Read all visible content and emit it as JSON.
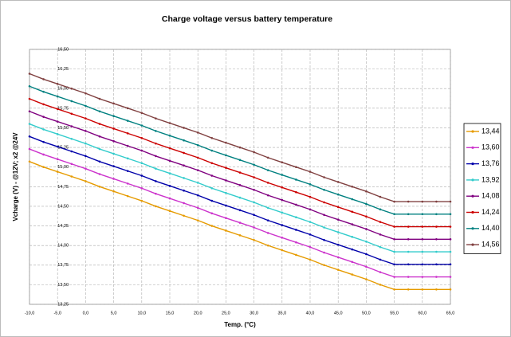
{
  "chart_data": {
    "type": "line",
    "title": "Charge voltage versus battery temperature",
    "x_label": "Temp. (°C)",
    "y_label": "Vcharge (V) - @12V; x2 @24V",
    "x": [
      -10,
      -7.5,
      -5,
      -2.5,
      0,
      2.5,
      5,
      7.5,
      10,
      12.5,
      15,
      17.5,
      20,
      22.5,
      25,
      27.5,
      30,
      32.5,
      35,
      37.5,
      40,
      42.5,
      45,
      47.5,
      50,
      52.5,
      55,
      57.5,
      60,
      62.5,
      65
    ],
    "series": [
      {
        "name": "13,44",
        "color": "#e69b00",
        "values": [
          15.07,
          15.0,
          14.94,
          14.88,
          14.82,
          14.75,
          14.69,
          14.63,
          14.57,
          14.5,
          14.44,
          14.38,
          14.32,
          14.25,
          14.19,
          14.13,
          14.07,
          14.0,
          13.94,
          13.88,
          13.82,
          13.75,
          13.69,
          13.63,
          13.57,
          13.5,
          13.44,
          13.44,
          13.44,
          13.44,
          13.44
        ]
      },
      {
        "name": "13,60",
        "color": "#cc33cc",
        "values": [
          15.23,
          15.16,
          15.1,
          15.04,
          14.98,
          14.91,
          14.85,
          14.79,
          14.73,
          14.66,
          14.6,
          14.54,
          14.48,
          14.41,
          14.35,
          14.29,
          14.23,
          14.16,
          14.1,
          14.04,
          13.98,
          13.91,
          13.85,
          13.79,
          13.73,
          13.66,
          13.6,
          13.6,
          13.6,
          13.6,
          13.6
        ]
      },
      {
        "name": "13,76",
        "color": "#0000aa",
        "values": [
          15.39,
          15.32,
          15.26,
          15.2,
          15.14,
          15.07,
          15.01,
          14.95,
          14.89,
          14.82,
          14.76,
          14.7,
          14.64,
          14.57,
          14.51,
          14.45,
          14.39,
          14.32,
          14.26,
          14.2,
          14.14,
          14.07,
          14.01,
          13.95,
          13.89,
          13.82,
          13.76,
          13.76,
          13.76,
          13.76,
          13.76
        ]
      },
      {
        "name": "13,92",
        "color": "#33cccc",
        "values": [
          15.55,
          15.48,
          15.42,
          15.36,
          15.3,
          15.23,
          15.17,
          15.11,
          15.05,
          14.98,
          14.92,
          14.86,
          14.8,
          14.73,
          14.67,
          14.61,
          14.55,
          14.48,
          14.42,
          14.36,
          14.3,
          14.23,
          14.17,
          14.11,
          14.05,
          13.98,
          13.92,
          13.92,
          13.92,
          13.92,
          13.92
        ]
      },
      {
        "name": "14,08",
        "color": "#800080",
        "values": [
          15.71,
          15.64,
          15.58,
          15.52,
          15.46,
          15.39,
          15.33,
          15.27,
          15.21,
          15.14,
          15.08,
          15.02,
          14.96,
          14.89,
          14.83,
          14.77,
          14.71,
          14.64,
          14.58,
          14.52,
          14.46,
          14.39,
          14.33,
          14.27,
          14.21,
          14.14,
          14.08,
          14.08,
          14.08,
          14.08,
          14.08
        ]
      },
      {
        "name": "14,24",
        "color": "#cc0000",
        "values": [
          15.87,
          15.8,
          15.74,
          15.68,
          15.62,
          15.55,
          15.49,
          15.43,
          15.37,
          15.3,
          15.24,
          15.18,
          15.12,
          15.05,
          14.99,
          14.93,
          14.87,
          14.8,
          14.74,
          14.68,
          14.62,
          14.55,
          14.49,
          14.43,
          14.37,
          14.3,
          14.24,
          14.24,
          14.24,
          14.24,
          14.24
        ]
      },
      {
        "name": "14,40",
        "color": "#008080",
        "values": [
          16.03,
          15.96,
          15.9,
          15.84,
          15.78,
          15.71,
          15.65,
          15.59,
          15.53,
          15.46,
          15.4,
          15.34,
          15.28,
          15.21,
          15.15,
          15.09,
          15.03,
          14.96,
          14.9,
          14.84,
          14.78,
          14.71,
          14.65,
          14.59,
          14.53,
          14.46,
          14.4,
          14.4,
          14.4,
          14.4,
          14.4
        ]
      },
      {
        "name": "14,56",
        "color": "#804040",
        "values": [
          16.19,
          16.12,
          16.06,
          16.0,
          15.94,
          15.87,
          15.81,
          15.75,
          15.69,
          15.62,
          15.56,
          15.5,
          15.44,
          15.37,
          15.31,
          15.25,
          15.19,
          15.12,
          15.06,
          15.0,
          14.94,
          14.87,
          14.81,
          14.75,
          14.69,
          14.62,
          14.56,
          14.56,
          14.56,
          14.56,
          14.56
        ]
      }
    ],
    "xlim": [
      -10,
      65
    ],
    "xticks": [
      {
        "value": -10,
        "label": "-10,0"
      },
      {
        "value": -5,
        "label": "-5,0"
      },
      {
        "value": 0,
        "label": "0,0"
      },
      {
        "value": 5,
        "label": "5,0"
      },
      {
        "value": 10,
        "label": "10,0"
      },
      {
        "value": 15,
        "label": "15,0"
      },
      {
        "value": 20,
        "label": "20,0"
      },
      {
        "value": 25,
        "label": "25,0"
      },
      {
        "value": 30,
        "label": "30,0"
      },
      {
        "value": 35,
        "label": "35,0"
      },
      {
        "value": 40,
        "label": "40,0"
      },
      {
        "value": 45,
        "label": "45,0"
      },
      {
        "value": 50,
        "label": "50,0"
      },
      {
        "value": 55,
        "label": "55,0"
      },
      {
        "value": 60,
        "label": "60,0"
      },
      {
        "value": 65,
        "label": "65,0"
      }
    ],
    "ylim": [
      13.25,
      16.5
    ],
    "yticks": [
      {
        "value": 13.25,
        "label": "13,25"
      },
      {
        "value": 13.5,
        "label": "13,50"
      },
      {
        "value": 13.75,
        "label": "13,75"
      },
      {
        "value": 14,
        "label": "14,00"
      },
      {
        "value": 14.25,
        "label": "14,25"
      },
      {
        "value": 14.5,
        "label": "14,50"
      },
      {
        "value": 14.75,
        "label": "14,75"
      },
      {
        "value": 15,
        "label": "15,00"
      },
      {
        "value": 15.25,
        "label": "15,25"
      },
      {
        "value": 15.5,
        "label": "15,50"
      },
      {
        "value": 15.75,
        "label": "15,75"
      },
      {
        "value": 16,
        "label": "16,00"
      },
      {
        "value": 16.25,
        "label": "16,25"
      },
      {
        "value": 16.5,
        "label": "16,50"
      }
    ],
    "grid": true,
    "legend": "right"
  }
}
